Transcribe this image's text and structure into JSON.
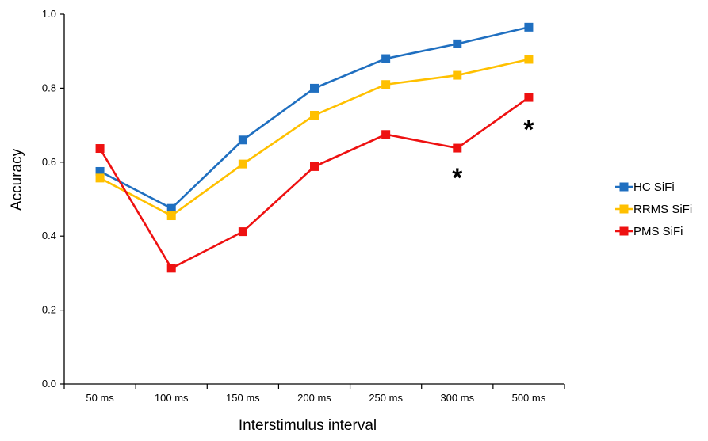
{
  "chart_data": {
    "type": "line",
    "title": "",
    "xlabel": "Interstimulus interval",
    "ylabel": "Accuracy",
    "categories": [
      "50 ms",
      "100 ms",
      "150 ms",
      "200 ms",
      "250 ms",
      "300 ms",
      "500 ms"
    ],
    "ylim": [
      0,
      1.0
    ],
    "yticks": [
      "0.0",
      "0.2",
      "0.4",
      "0.6",
      "0.8",
      "1.0"
    ],
    "grid": false,
    "legend_position": "right",
    "series": [
      {
        "name": "HC SiFi",
        "color": "#1F6FC0",
        "values": [
          0.575,
          0.475,
          0.66,
          0.8,
          0.88,
          0.92,
          0.965
        ]
      },
      {
        "name": "RRMS SiFi",
        "color": "#FFC000",
        "values": [
          0.557,
          0.455,
          0.595,
          0.727,
          0.81,
          0.835,
          0.878
        ]
      },
      {
        "name": "PMS SiFi",
        "color": "#EE1111",
        "values": [
          0.637,
          0.313,
          0.412,
          0.588,
          0.675,
          0.638,
          0.775
        ]
      }
    ],
    "annotations": [
      {
        "text": "*",
        "category": "300 ms",
        "y": 0.585
      },
      {
        "text": "*",
        "category": "500 ms",
        "y": 0.715
      }
    ]
  }
}
